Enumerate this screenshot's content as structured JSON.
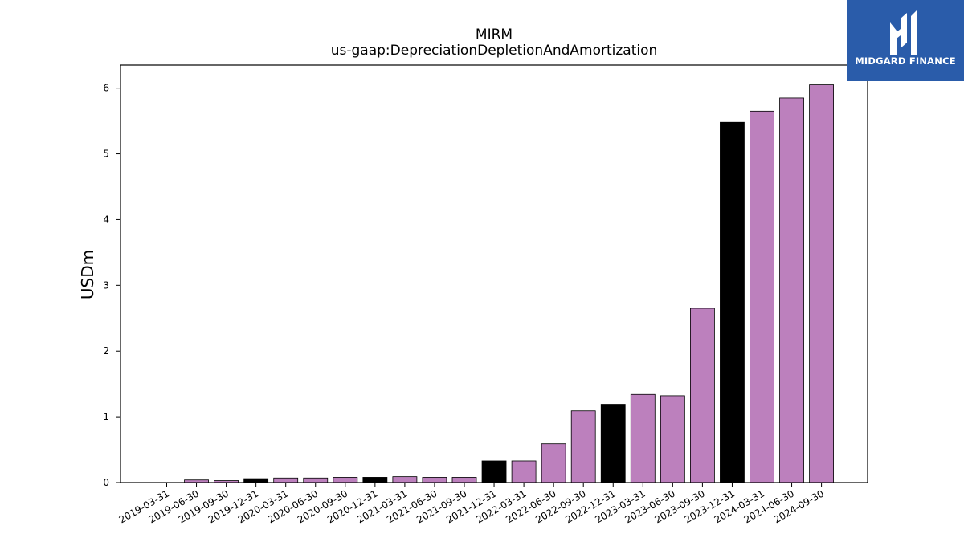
{
  "chart_data": {
    "type": "bar",
    "title": "MIRM",
    "subtitle": "us-gaap:DepreciationDepletionAndAmortization",
    "ylabel": "USDm",
    "xlabel": "",
    "ylim": [
      0,
      6.35
    ],
    "yticks": [
      0,
      1,
      2,
      3,
      4,
      5,
      6
    ],
    "grid": false,
    "categories": [
      "2019-03-31",
      "2019-06-30",
      "2019-09-30",
      "2019-12-31",
      "2020-03-31",
      "2020-06-30",
      "2020-09-30",
      "2020-12-31",
      "2021-03-31",
      "2021-06-30",
      "2021-09-30",
      "2021-12-31",
      "2022-03-31",
      "2022-06-30",
      "2022-09-30",
      "2022-12-31",
      "2023-03-31",
      "2023-06-30",
      "2023-09-30",
      "2023-12-31",
      "2024-03-31",
      "2024-06-30",
      "2024-09-30"
    ],
    "values": [
      0.0,
      0.04,
      0.03,
      0.06,
      0.07,
      0.07,
      0.08,
      0.08,
      0.09,
      0.08,
      0.08,
      0.33,
      0.33,
      0.59,
      1.09,
      1.19,
      1.34,
      1.32,
      2.65,
      5.48,
      5.65,
      5.85,
      6.05
    ],
    "fiscal_year_end": [
      false,
      false,
      false,
      true,
      false,
      false,
      false,
      true,
      false,
      false,
      false,
      true,
      false,
      false,
      false,
      true,
      false,
      false,
      false,
      true,
      false,
      false,
      false
    ],
    "colors": {
      "quarter": "#bc80bd",
      "year_end": "#000000",
      "edge": "#000000"
    }
  },
  "logo": {
    "text": "MIDGARD FINANCE",
    "color": "#2a5caa"
  }
}
